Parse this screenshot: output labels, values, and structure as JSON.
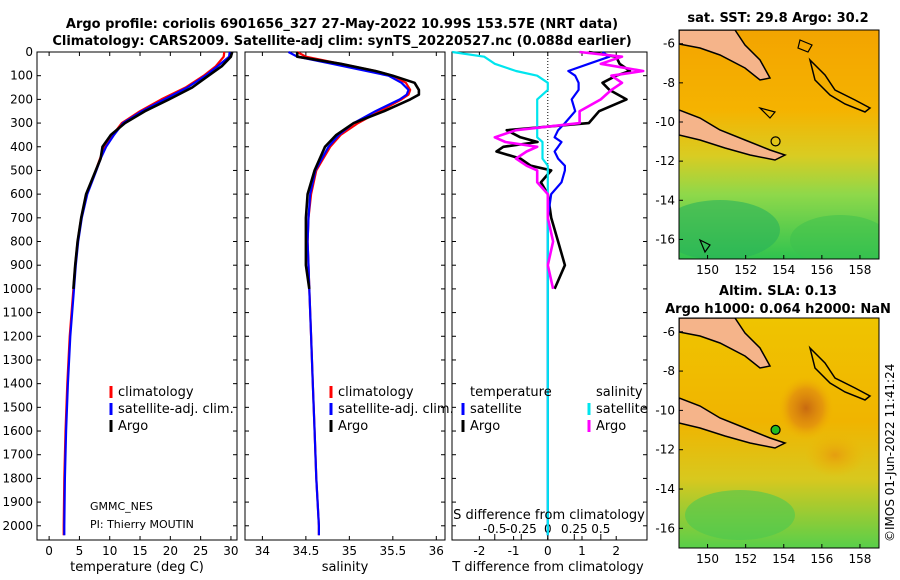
{
  "title": {
    "line1": "Argo profile: coriolis 6901656_327 27-May-2022 10.99S 153.57E (NRT data)",
    "line2": "Climatology: CARS2009. Satellite-adj clim: synTS_20220527.nc (0.088d earlier)"
  },
  "colors": {
    "climatology": "#ff0000",
    "satellite": "#0000ff",
    "argo": "#000000",
    "salinity_argo": "#ff00ff",
    "salinity_sat": "#00e5ee"
  },
  "depth_axis": {
    "ticks": [
      "0",
      "100",
      "200",
      "300",
      "400",
      "500",
      "600",
      "700",
      "800",
      "900",
      "1000",
      "1100",
      "1200",
      "1300",
      "1400",
      "1500",
      "1600",
      "1700",
      "1800",
      "1900",
      "2000"
    ],
    "range": [
      0,
      2060
    ]
  },
  "chart_data": [
    {
      "type": "line",
      "name": "temperature",
      "xlabel": "temperature (deg C)",
      "xlim": [
        -2,
        31
      ],
      "xticks": [
        "0",
        "5",
        "10",
        "15",
        "20",
        "25",
        "30"
      ],
      "xtick_values": [
        0,
        5,
        10,
        15,
        20,
        25,
        30
      ],
      "depth": [
        0,
        20,
        60,
        100,
        150,
        200,
        250,
        300,
        350,
        400,
        450,
        500,
        600,
        700,
        800,
        900,
        1000,
        1200,
        1400,
        1600,
        1800,
        2000,
        2040
      ],
      "series": [
        {
          "name": "climatology",
          "values": [
            28.9,
            28.8,
            27.5,
            25.5,
            22.5,
            18.5,
            15.0,
            12.0,
            10.5,
            9.2,
            8.4,
            7.7,
            6.2,
            5.3,
            4.7,
            4.3,
            4.0,
            3.4,
            3.0,
            2.7,
            2.5,
            2.4,
            2.4
          ]
        },
        {
          "name": "satellite-adj. clim.",
          "values": [
            29.8,
            29.7,
            27.8,
            25.8,
            22.8,
            19.0,
            15.3,
            12.2,
            10.7,
            9.4,
            8.5,
            7.8,
            6.3,
            5.4,
            4.8,
            4.4,
            4.1,
            3.5,
            3.1,
            2.8,
            2.6,
            2.5,
            2.5
          ]
        },
        {
          "name": "Argo",
          "values": [
            30.2,
            30.0,
            28.5,
            26.3,
            23.6,
            19.8,
            15.8,
            12.5,
            10.2,
            8.8,
            8.5,
            7.7,
            6.1,
            5.3,
            4.7,
            4.3,
            4.0,
            null,
            null,
            null,
            null,
            null,
            null
          ]
        }
      ],
      "legend": [
        "climatology",
        "satellite-adj. clim.",
        "Argo"
      ],
      "annotation_1": "GMMC_NES",
      "annotation_2": "PI: Thierry MOUTIN"
    },
    {
      "type": "line",
      "name": "salinity",
      "xlabel": "salinity",
      "xlim": [
        33.8,
        36.1
      ],
      "xticks": [
        "34",
        "34.5",
        "35",
        "35.5",
        "36"
      ],
      "xtick_values": [
        34,
        34.5,
        35,
        35.5,
        36
      ],
      "depth": [
        0,
        20,
        50,
        80,
        100,
        130,
        160,
        180,
        200,
        250,
        300,
        350,
        400,
        500,
        600,
        700,
        800,
        900,
        1000,
        1200,
        1400,
        1600,
        1800,
        2000,
        2040
      ],
      "series": [
        {
          "name": "climatology",
          "values": [
            34.4,
            34.5,
            34.9,
            35.3,
            35.5,
            35.65,
            35.7,
            35.68,
            35.6,
            35.35,
            35.1,
            34.9,
            34.78,
            34.62,
            34.56,
            34.53,
            34.52,
            34.53,
            34.54,
            34.56,
            34.58,
            34.6,
            34.62,
            34.65,
            34.65
          ]
        },
        {
          "name": "satellite-adj. clim.",
          "values": [
            34.3,
            34.4,
            34.8,
            35.2,
            35.45,
            35.6,
            35.68,
            35.66,
            35.58,
            35.3,
            35.05,
            34.88,
            34.76,
            34.61,
            34.55,
            34.53,
            34.52,
            34.53,
            34.54,
            34.56,
            34.58,
            34.6,
            34.62,
            34.65,
            34.65
          ]
        },
        {
          "name": "Argo",
          "values": [
            34.4,
            34.4,
            34.9,
            35.3,
            35.5,
            35.75,
            35.8,
            35.8,
            35.7,
            35.4,
            35.05,
            34.85,
            34.72,
            34.6,
            34.52,
            34.5,
            34.5,
            34.5,
            34.54,
            null,
            null,
            null,
            null,
            null,
            null
          ]
        }
      ],
      "legend": [
        "climatology",
        "satellite-adj. clim.",
        "Argo"
      ]
    },
    {
      "type": "line",
      "name": "differences",
      "xlabel": "T difference from climatology",
      "xlabel2": "S difference from climatology",
      "xlim": [
        -2.8,
        2.9
      ],
      "xticks": [
        "-2",
        "-1",
        "0",
        "1",
        "2"
      ],
      "xtick_values": [
        -2,
        -1,
        0,
        1,
        2
      ],
      "sticks": [
        "-0.5",
        "-0.25",
        "0",
        "0.25",
        "0.5"
      ],
      "stick_values": [
        -0.5,
        -0.25,
        0,
        0.25,
        0.5
      ],
      "depth": [
        0,
        20,
        50,
        80,
        100,
        130,
        160,
        200,
        250,
        300,
        330,
        360,
        380,
        400,
        420,
        450,
        480,
        500,
        550,
        600,
        700,
        800,
        900,
        1000,
        1100,
        1200,
        1400,
        1600,
        1800,
        2000,
        2040
      ],
      "series": [
        {
          "name": "temperature Argo",
          "values": [
            1.2,
            2.0,
            2.1,
            2.4,
            2.0,
            1.6,
            1.8,
            2.3,
            1.5,
            1.2,
            -1.2,
            -0.8,
            -0.3,
            -1.3,
            -1.5,
            -0.8,
            -0.5,
            0.1,
            -0.2,
            0.0,
            0.1,
            0.3,
            0.5,
            0.2,
            null,
            null,
            null,
            null,
            null,
            null,
            null
          ]
        },
        {
          "name": "temperature satellite",
          "values": [
            1.6,
            1.8,
            1.2,
            0.6,
            0.8,
            0.9,
            0.9,
            0.7,
            0.8,
            0.5,
            0.3,
            0.2,
            0.4,
            0.3,
            0.2,
            0.3,
            0.5,
            0.5,
            0.4,
            0.1,
            0.0,
            0.0,
            0.0,
            0.0,
            0.0,
            0.0,
            0.0,
            0.0,
            0.0,
            0.0,
            0.0
          ]
        },
        {
          "name": "salinity satellite",
          "values": [
            -0.9,
            -0.6,
            -0.5,
            -0.3,
            -0.1,
            0.0,
            0.0,
            -0.1,
            -0.1,
            -0.1,
            -0.1,
            -0.1,
            -0.05,
            -0.05,
            -0.05,
            -0.05,
            0.0,
            0.0,
            0.0,
            0.0,
            0.0,
            0.0,
            0.0,
            0.0,
            0.0,
            0.0,
            0.0,
            0.0,
            0.0,
            0.0,
            0.0
          ]
        },
        {
          "name": "salinity Argo",
          "values": [
            0.3,
            0.7,
            0.5,
            0.9,
            0.6,
            0.7,
            0.6,
            0.5,
            0.3,
            0.3,
            -0.3,
            -0.5,
            -0.4,
            -0.1,
            -0.2,
            -0.3,
            -0.2,
            -0.1,
            -0.1,
            0.0,
            0.0,
            0.05,
            0.0,
            0.05,
            null,
            null,
            null,
            null,
            null,
            null,
            null
          ]
        }
      ],
      "legend_t": [
        "temperature",
        "satellite",
        "Argo"
      ],
      "legend_s": [
        "salinity",
        "satellite",
        "Argo"
      ]
    },
    {
      "type": "heatmap",
      "name": "sst_map",
      "title": "sat. SST: 29.8 Argo: 30.2",
      "xticks": [
        "150",
        "152",
        "154",
        "156",
        "158"
      ],
      "xtick_values": [
        150,
        152,
        154,
        156,
        158
      ],
      "yticks": [
        "-6",
        "-8",
        "-10",
        "-12",
        "-14",
        "-16"
      ],
      "ytick_values": [
        -6,
        -8,
        -10,
        -12,
        -14,
        -16
      ],
      "xlim": [
        148.5,
        159
      ],
      "ylim": [
        -17,
        -5.3
      ],
      "float_lon": 153.57,
      "float_lat": -10.99
    },
    {
      "type": "heatmap",
      "name": "sla_map",
      "title1": "Altim. SLA: 0.13",
      "title2": "Argo h1000: 0.064 h2000: NaN",
      "xticks": [
        "150",
        "152",
        "154",
        "156",
        "158"
      ],
      "xtick_values": [
        150,
        152,
        154,
        156,
        158
      ],
      "yticks": [
        "-6",
        "-8",
        "-10",
        "-12",
        "-14",
        "-16"
      ],
      "ytick_values": [
        -6,
        -8,
        -10,
        -12,
        -14,
        -16
      ],
      "xlim": [
        148.5,
        159
      ],
      "ylim": [
        -17,
        -5.3
      ],
      "float_lon": 153.57,
      "float_lat": -10.99
    }
  ],
  "watermark": "©IMOS 01-Jun-2022 11:41:24"
}
